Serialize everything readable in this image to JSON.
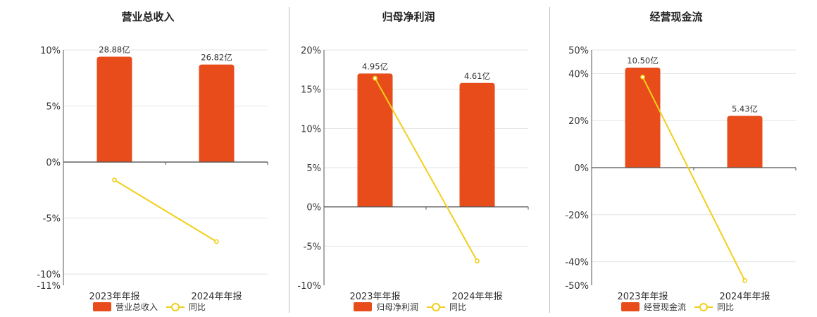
{
  "colors": {
    "bar": "#e84c1a",
    "line": "#f2cf1a",
    "grid": "#e3e3e3",
    "axis": "#555555"
  },
  "chart_data": [
    {
      "type": "bar",
      "title": "营业总收入",
      "categories": [
        "2023年年报",
        "2024年年报"
      ],
      "bar_labels": [
        "28.88亿",
        "26.82亿"
      ],
      "bar_values": [
        9.4,
        8.7
      ],
      "line_values": [
        -1.6,
        -7.1
      ],
      "ylim": [
        -11,
        10
      ],
      "yticks": [
        10,
        5,
        0,
        -5,
        -10,
        -11
      ],
      "ytick_labels": [
        "10%",
        "5%",
        "0%",
        "-5%",
        "-10%",
        "-11%"
      ],
      "legend": [
        "营业总收入",
        "同比"
      ]
    },
    {
      "type": "bar",
      "title": "归母净利润",
      "categories": [
        "2023年年报",
        "2024年年报"
      ],
      "bar_labels": [
        "4.95亿",
        "4.61亿"
      ],
      "bar_values": [
        17.0,
        15.8
      ],
      "line_values": [
        16.4,
        -6.9
      ],
      "ylim": [
        -10,
        20
      ],
      "yticks": [
        20,
        15,
        10,
        5,
        0,
        -5,
        -10
      ],
      "ytick_labels": [
        "20%",
        "15%",
        "10%",
        "5%",
        "0%",
        "-5%",
        "-10%"
      ],
      "legend": [
        "归母净利润",
        "同比"
      ]
    },
    {
      "type": "bar",
      "title": "经营现金流",
      "categories": [
        "2023年年报",
        "2024年年报"
      ],
      "bar_labels": [
        "10.50亿",
        "5.43亿"
      ],
      "bar_values": [
        42.5,
        22.0
      ],
      "line_values": [
        38.5,
        -48.0
      ],
      "ylim": [
        -50,
        50
      ],
      "yticks": [
        50,
        40,
        20,
        0,
        -20,
        -40,
        -50
      ],
      "ytick_labels": [
        "50%",
        "40%",
        "20%",
        "0%",
        "-20%",
        "-40%",
        "-50%"
      ],
      "legend": [
        "经营现金流",
        "同比"
      ]
    }
  ]
}
